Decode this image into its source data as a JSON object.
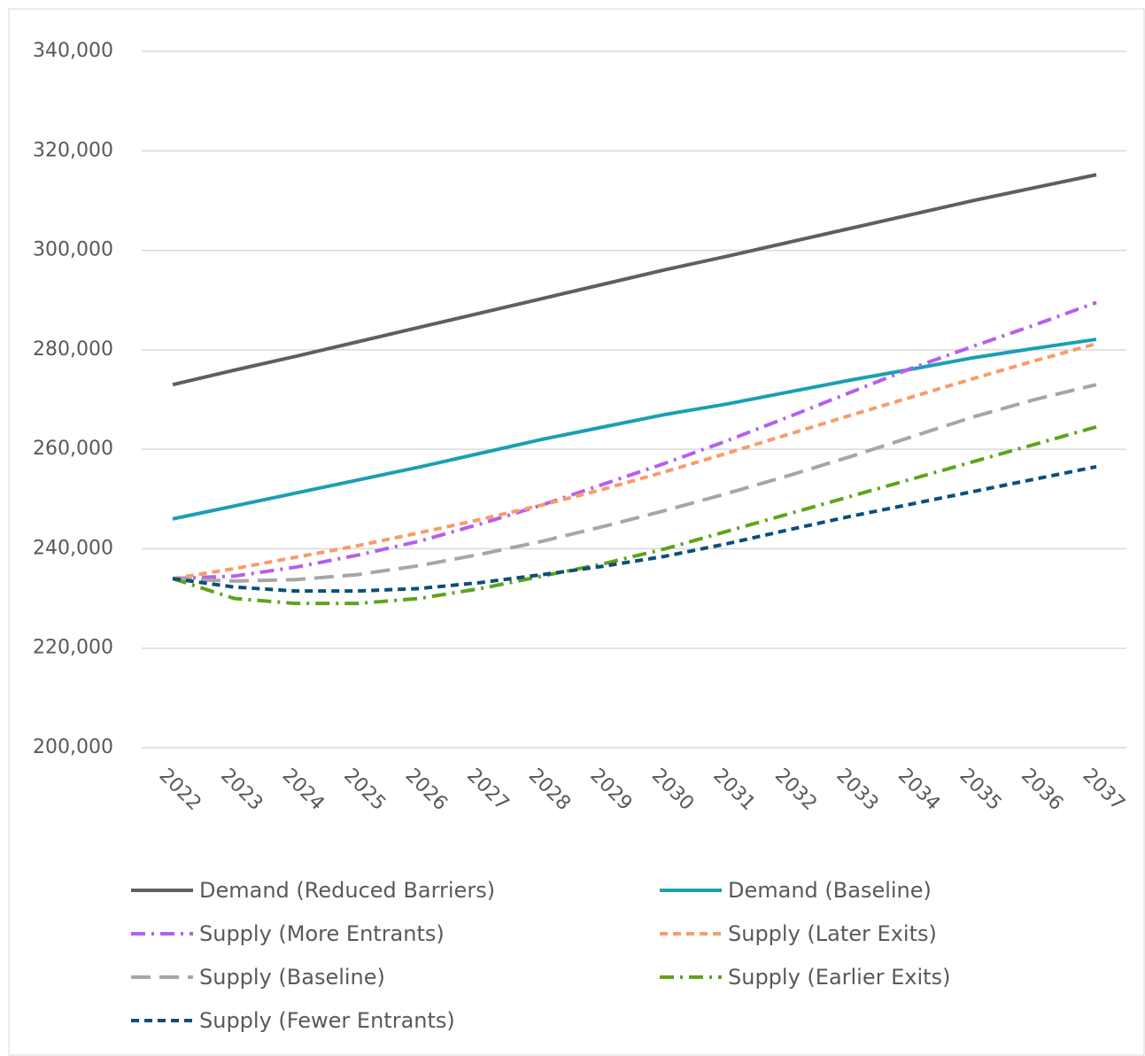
{
  "chart_data": {
    "type": "line",
    "categories": [
      "2022",
      "2023",
      "2024",
      "2025",
      "2026",
      "2027",
      "2028",
      "2029",
      "2030",
      "2031",
      "2032",
      "2033",
      "2034",
      "2035",
      "2036",
      "2037"
    ],
    "ylim": [
      200000,
      340000
    ],
    "yticks": [
      {
        "value": 200000,
        "label": "200,000"
      },
      {
        "value": 220000,
        "label": "220,000"
      },
      {
        "value": 240000,
        "label": "240,000"
      },
      {
        "value": 260000,
        "label": "260,000"
      },
      {
        "value": 280000,
        "label": "280,000"
      },
      {
        "value": 300000,
        "label": "300,000"
      },
      {
        "value": 320000,
        "label": "320,000"
      },
      {
        "value": 340000,
        "label": "340,000"
      }
    ],
    "grid": true,
    "legend": "bottom",
    "series": [
      {
        "name": "Demand (Reduced Barriers)",
        "color": "#5f5f5f",
        "dash": "solid",
        "values": [
          273000,
          275900,
          278700,
          281600,
          284500,
          287400,
          290300,
          293200,
          296100,
          298800,
          301600,
          304400,
          307200,
          310000,
          312600,
          315200
        ]
      },
      {
        "name": "Demand (Baseline)",
        "color": "#1a9fb3",
        "dash": "solid",
        "values": [
          246000,
          248600,
          251200,
          253800,
          256400,
          259200,
          262000,
          264500,
          267000,
          269100,
          271500,
          273900,
          276100,
          278400,
          280300,
          282100
        ]
      },
      {
        "name": "Supply (More Entrants)",
        "color": "#b55ff0",
        "dash": "dashdot",
        "values": [
          234000,
          234500,
          236300,
          238700,
          241500,
          245000,
          248800,
          253000,
          257200,
          261700,
          266500,
          271400,
          276300,
          280700,
          285000,
          289500
        ]
      },
      {
        "name": "Supply (Later Exits)",
        "color": "#f79c6a",
        "dash": "dash",
        "values": [
          234000,
          236000,
          238300,
          240600,
          243200,
          245900,
          248800,
          252000,
          255500,
          259200,
          263000,
          266800,
          270500,
          274200,
          277800,
          281200
        ]
      },
      {
        "name": "Supply (Baseline)",
        "color": "#a6a6a6",
        "dash": "longdash",
        "values": [
          234000,
          233500,
          233800,
          234800,
          236600,
          238900,
          241500,
          244500,
          247700,
          251100,
          254700,
          258500,
          262500,
          266500,
          270000,
          273000
        ]
      },
      {
        "name": "Supply (Earlier Exits)",
        "color": "#5ea31a",
        "dash": "dashdot",
        "values": [
          234000,
          230000,
          229000,
          229000,
          230000,
          232000,
          234500,
          237000,
          240000,
          243500,
          247000,
          250500,
          254000,
          257500,
          261000,
          264500
        ]
      },
      {
        "name": "Supply (Fewer Entrants)",
        "color": "#0b4f7c",
        "dash": "dash",
        "values": [
          234000,
          232300,
          231500,
          231500,
          232000,
          233200,
          234800,
          236500,
          238500,
          241000,
          243800,
          246500,
          249000,
          251500,
          254000,
          256500
        ]
      }
    ]
  }
}
